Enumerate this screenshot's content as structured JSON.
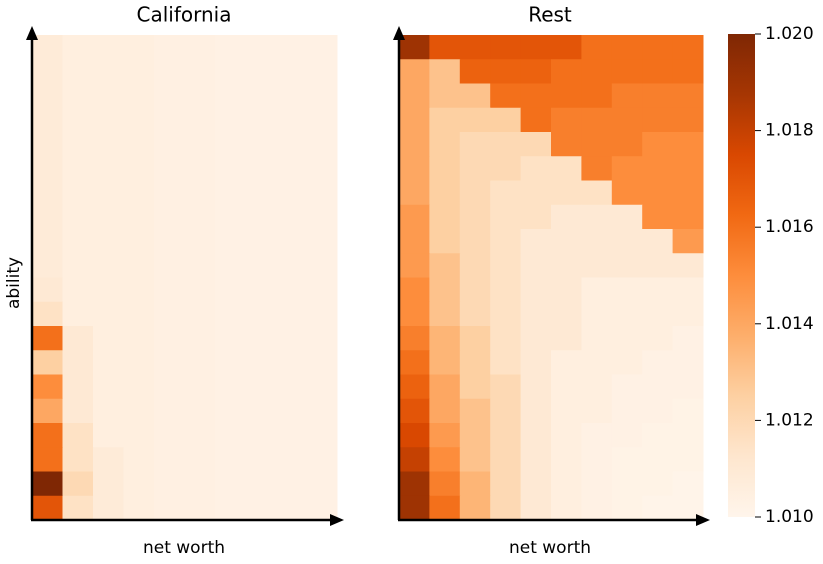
{
  "chart_data": {
    "type": "heatmap",
    "ylabel": "ability",
    "panels": [
      {
        "title": "California",
        "xlabel": "net worth",
        "values": [
          [
            1.0108,
            1.0105,
            1.0105,
            1.0105,
            1.0104,
            1.0104,
            1.0103,
            1.0103,
            1.0103,
            1.0103
          ],
          [
            1.0108,
            1.0105,
            1.0105,
            1.0105,
            1.0104,
            1.0104,
            1.0103,
            1.0103,
            1.0103,
            1.0103
          ],
          [
            1.0108,
            1.0105,
            1.0105,
            1.0105,
            1.0104,
            1.0104,
            1.0103,
            1.0103,
            1.0103,
            1.0103
          ],
          [
            1.0108,
            1.0105,
            1.0105,
            1.0105,
            1.0104,
            1.0104,
            1.0103,
            1.0103,
            1.0103,
            1.0103
          ],
          [
            1.0108,
            1.0105,
            1.0105,
            1.0105,
            1.0104,
            1.0104,
            1.0103,
            1.0103,
            1.0103,
            1.0103
          ],
          [
            1.0108,
            1.0105,
            1.0105,
            1.0105,
            1.0104,
            1.0104,
            1.0103,
            1.0103,
            1.0103,
            1.0103
          ],
          [
            1.0108,
            1.0105,
            1.0105,
            1.0105,
            1.0104,
            1.0104,
            1.0103,
            1.0103,
            1.0103,
            1.0103
          ],
          [
            1.0108,
            1.0105,
            1.0105,
            1.0105,
            1.0104,
            1.0104,
            1.0103,
            1.0103,
            1.0103,
            1.0103
          ],
          [
            1.0108,
            1.0105,
            1.0105,
            1.0105,
            1.0104,
            1.0104,
            1.0103,
            1.0103,
            1.0103,
            1.0103
          ],
          [
            1.0108,
            1.0105,
            1.0105,
            1.0105,
            1.0104,
            1.0104,
            1.0103,
            1.0103,
            1.0103,
            1.0103
          ],
          [
            1.011,
            1.0105,
            1.0105,
            1.0105,
            1.0104,
            1.0104,
            1.0103,
            1.0103,
            1.0103,
            1.0103
          ],
          [
            1.0115,
            1.0105,
            1.0105,
            1.0105,
            1.0104,
            1.0104,
            1.0103,
            1.0103,
            1.0103,
            1.0103
          ],
          [
            1.016,
            1.011,
            1.0105,
            1.0105,
            1.0104,
            1.0104,
            1.0103,
            1.0103,
            1.0103,
            1.0103
          ],
          [
            1.0125,
            1.011,
            1.0105,
            1.0105,
            1.0104,
            1.0104,
            1.0103,
            1.0103,
            1.0103,
            1.0103
          ],
          [
            1.015,
            1.011,
            1.0105,
            1.0105,
            1.0104,
            1.0104,
            1.0103,
            1.0103,
            1.0103,
            1.0103
          ],
          [
            1.014,
            1.011,
            1.0105,
            1.0105,
            1.0104,
            1.0104,
            1.0103,
            1.0103,
            1.0103,
            1.0103
          ],
          [
            1.016,
            1.0115,
            1.0105,
            1.0105,
            1.0104,
            1.0104,
            1.0103,
            1.0103,
            1.0103,
            1.0103
          ],
          [
            1.016,
            1.0115,
            1.0108,
            1.0105,
            1.0104,
            1.0104,
            1.0103,
            1.0103,
            1.0103,
            1.0103
          ],
          [
            1.02,
            1.012,
            1.0108,
            1.0105,
            1.0104,
            1.0104,
            1.0103,
            1.0103,
            1.0103,
            1.0103
          ],
          [
            1.017,
            1.0115,
            1.0108,
            1.0105,
            1.0104,
            1.0104,
            1.0103,
            1.0103,
            1.0103,
            1.0103
          ]
        ]
      },
      {
        "title": "Rest",
        "xlabel": "net worth",
        "values": [
          [
            1.019,
            1.017,
            1.017,
            1.017,
            1.017,
            1.017,
            1.016,
            1.016,
            1.016,
            1.016
          ],
          [
            1.014,
            1.013,
            1.0165,
            1.0165,
            1.0165,
            1.016,
            1.016,
            1.016,
            1.016,
            1.016
          ],
          [
            1.014,
            1.013,
            1.013,
            1.016,
            1.016,
            1.016,
            1.016,
            1.0155,
            1.0155,
            1.0155
          ],
          [
            1.014,
            1.0125,
            1.0125,
            1.0125,
            1.016,
            1.0155,
            1.0155,
            1.0155,
            1.0155,
            1.0155
          ],
          [
            1.014,
            1.0125,
            1.012,
            1.012,
            1.012,
            1.0155,
            1.0155,
            1.0155,
            1.015,
            1.015
          ],
          [
            1.014,
            1.0125,
            1.012,
            1.012,
            1.0115,
            1.0115,
            1.0155,
            1.015,
            1.015,
            1.015
          ],
          [
            1.014,
            1.0125,
            1.012,
            1.0115,
            1.0115,
            1.0115,
            1.0115,
            1.015,
            1.015,
            1.015
          ],
          [
            1.0145,
            1.0125,
            1.012,
            1.0115,
            1.0115,
            1.011,
            1.011,
            1.011,
            1.015,
            1.015
          ],
          [
            1.0145,
            1.0125,
            1.012,
            1.0115,
            1.011,
            1.011,
            1.011,
            1.011,
            1.011,
            1.0145
          ],
          [
            1.0145,
            1.013,
            1.012,
            1.0115,
            1.011,
            1.011,
            1.011,
            1.011,
            1.011,
            1.011
          ],
          [
            1.015,
            1.013,
            1.012,
            1.0115,
            1.011,
            1.011,
            1.0105,
            1.0105,
            1.0105,
            1.0105
          ],
          [
            1.015,
            1.013,
            1.012,
            1.0115,
            1.011,
            1.011,
            1.0105,
            1.0105,
            1.0105,
            1.0105
          ],
          [
            1.0155,
            1.0135,
            1.0125,
            1.0115,
            1.011,
            1.011,
            1.0105,
            1.0105,
            1.0105,
            1.0103
          ],
          [
            1.016,
            1.0135,
            1.0125,
            1.0115,
            1.011,
            1.0105,
            1.0105,
            1.0105,
            1.0103,
            1.0103
          ],
          [
            1.0165,
            1.014,
            1.0125,
            1.012,
            1.011,
            1.0105,
            1.0105,
            1.0103,
            1.0103,
            1.0103
          ],
          [
            1.017,
            1.014,
            1.013,
            1.012,
            1.011,
            1.0105,
            1.0105,
            1.0103,
            1.0103,
            1.0102
          ],
          [
            1.0175,
            1.0145,
            1.013,
            1.012,
            1.011,
            1.0105,
            1.0103,
            1.0103,
            1.0102,
            1.0102
          ],
          [
            1.018,
            1.015,
            1.013,
            1.012,
            1.011,
            1.0105,
            1.0103,
            1.0102,
            1.0102,
            1.0102
          ],
          [
            1.019,
            1.0155,
            1.0135,
            1.012,
            1.011,
            1.0105,
            1.0103,
            1.0102,
            1.0102,
            1.0101
          ],
          [
            1.019,
            1.016,
            1.0135,
            1.012,
            1.011,
            1.0105,
            1.0103,
            1.0102,
            1.0101,
            1.0101
          ]
        ]
      }
    ],
    "colorbar": {
      "lim": [
        1.01,
        1.02
      ],
      "ticks": [
        {
          "value": 1.01,
          "label": "1.010"
        },
        {
          "value": 1.012,
          "label": "1.012"
        },
        {
          "value": 1.014,
          "label": "1.014"
        },
        {
          "value": 1.016,
          "label": "1.016"
        },
        {
          "value": 1.018,
          "label": "1.018"
        },
        {
          "value": 1.02,
          "label": "1.020"
        }
      ],
      "colors": [
        "#fff5eb",
        "#fee6ce",
        "#fdd0a2",
        "#fdae6b",
        "#fd8d3c",
        "#f16913",
        "#d94801",
        "#a63603",
        "#7f2704"
      ]
    }
  }
}
